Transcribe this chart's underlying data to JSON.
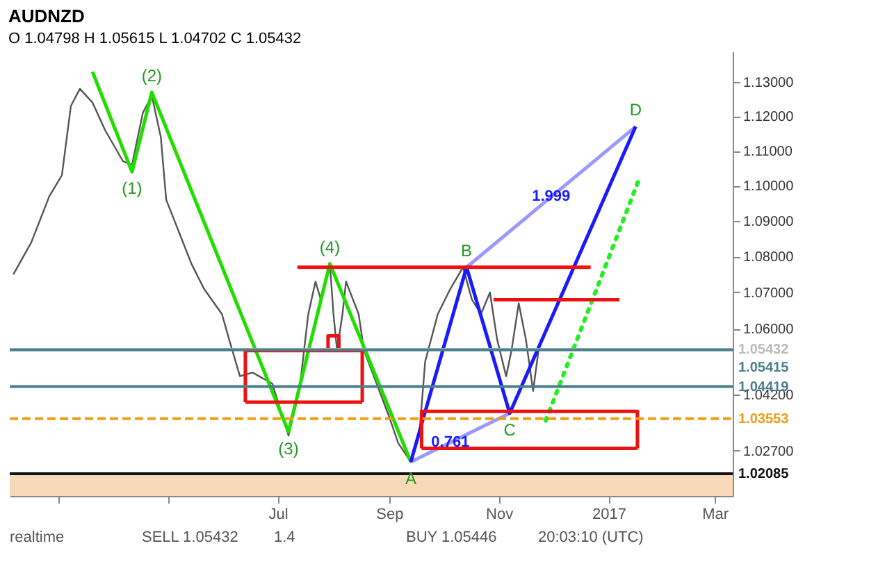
{
  "chart_data": {
    "type": "line",
    "title": "AUDNZD",
    "subtitle": "O 1.04798 H 1.05615 L 1.04702 C 1.05432",
    "log": "y",
    "xlim": [
      "2016-02-03",
      "2017-03-11"
    ],
    "xticks": [
      {
        "value": "2016-03-01",
        "label": null
      },
      {
        "value": "2016-05-01",
        "label": null
      },
      {
        "value": "2016-07-01",
        "label": "Jul"
      },
      {
        "value": "2016-09-01",
        "label": "Sep"
      },
      {
        "value": "2016-11-01",
        "label": "Nov"
      },
      {
        "value": "2017-01-01",
        "label": "2017"
      },
      {
        "value": "2017-03-01",
        "label": "Mar"
      }
    ],
    "ylim": [
      1.015,
      1.139
    ],
    "yticks": [
      {
        "value": 1.027,
        "label": "1.02700"
      },
      {
        "value": 1.042,
        "label": "1.04200"
      },
      {
        "value": 1.06,
        "label": "1.06000"
      },
      {
        "value": 1.07,
        "label": "1.07000"
      },
      {
        "value": 1.08,
        "label": "1.08000"
      },
      {
        "value": 1.09,
        "label": "1.09000"
      },
      {
        "value": 1.1,
        "label": "1.10000"
      },
      {
        "value": 1.11,
        "label": "1.11000"
      },
      {
        "value": 1.12,
        "label": "1.12000"
      },
      {
        "value": 1.13,
        "label": "1.13000"
      }
    ],
    "series": [
      {
        "color": "#555555",
        "x": [
          "2016-02-05",
          "2016-02-15",
          "2016-02-25",
          "2016-03-03",
          "2016-03-08",
          "2016-03-13",
          "2016-03-20",
          "2016-03-27",
          "2016-04-06",
          "2016-04-11",
          "2016-04-17",
          "2016-04-22",
          "2016-04-27",
          "2016-04-30",
          "2016-05-07",
          "2016-05-14",
          "2016-05-21",
          "2016-05-31",
          "2016-06-04",
          "2016-06-10",
          "2016-06-17",
          "2016-06-28",
          "2016-07-07",
          "2016-07-13",
          "2016-07-18",
          "2016-07-22",
          "2016-07-25",
          "2016-07-30",
          "2016-08-01",
          "2016-08-03",
          "2016-08-06",
          "2016-08-08",
          "2016-08-15",
          "2016-08-18",
          "2016-08-25",
          "2016-09-01",
          "2016-09-06",
          "2016-09-13",
          "2016-09-18",
          "2016-09-21",
          "2016-09-28",
          "2016-10-05",
          "2016-10-12",
          "2016-10-17",
          "2016-10-22",
          "2016-10-27",
          "2016-10-31",
          "2016-11-05",
          "2016-11-08",
          "2016-11-12",
          "2016-11-16",
          "2016-11-20",
          "2016-11-23"
        ],
        "values": [
          1.075,
          1.084,
          1.097,
          1.103,
          1.123,
          1.128,
          1.124,
          1.116,
          1.107,
          1.106,
          1.121,
          1.126,
          1.114,
          1.096,
          1.087,
          1.078,
          1.071,
          1.064,
          1.057,
          1.047,
          1.048,
          1.045,
          1.031,
          1.043,
          1.064,
          1.073,
          1.068,
          1.078,
          1.064,
          1.054,
          1.064,
          1.073,
          1.064,
          1.054,
          1.045,
          1.036,
          1.029,
          1.024,
          1.033,
          1.051,
          1.064,
          1.071,
          1.077,
          1.068,
          1.064,
          1.07,
          1.057,
          1.047,
          1.054,
          1.067,
          1.057,
          1.043,
          1.054
        ]
      },
      {
        "color": "#22dd00",
        "x": [
          "2016-03-20",
          "2016-04-11",
          "2016-04-22",
          "2016-07-07",
          "2016-07-30",
          "2016-09-13"
        ],
        "values": [
          1.133,
          1.104,
          1.127,
          1.032,
          1.078,
          1.024
        ]
      },
      {
        "color": "#9999ff",
        "x": [
          "2016-09-13",
          "2016-11-07"
        ],
        "values": [
          1.024,
          1.037
        ]
      },
      {
        "color": "#9999ff",
        "x": [
          "2016-10-14",
          "2017-01-16"
        ],
        "values": [
          1.077,
          1.117
        ]
      },
      {
        "color": "#1a1aff",
        "x": [
          "2016-09-13",
          "2016-10-14",
          "2016-11-07",
          "2017-01-16"
        ],
        "values": [
          1.024,
          1.077,
          1.037,
          1.117
        ]
      },
      {
        "color": "#22ee22",
        "line_style": "dotted",
        "x": [
          "2016-11-27",
          "2017-01-18"
        ],
        "values": [
          1.035,
          1.102
        ]
      },
      {
        "color": "#ee1111",
        "x": [
          "2016-07-12",
          "2016-12-22"
        ],
        "values": [
          1.077,
          1.077
        ]
      },
      {
        "color": "#ee1111",
        "x": [
          "2016-10-29",
          "2017-01-07"
        ],
        "values": [
          1.068,
          1.068
        ]
      },
      {
        "color": "#ee1111",
        "x": [
          "2016-06-13",
          "2016-06-13",
          "2016-08-17",
          "2016-08-17"
        ],
        "values": [
          1.04,
          1.054,
          1.054,
          1.04
        ]
      },
      {
        "color": "#ee1111",
        "x": [
          "2016-06-13",
          "2016-08-17"
        ],
        "values": [
          1.04,
          1.04
        ]
      },
      {
        "color": "#ee1111",
        "x": [
          "2016-07-29",
          "2016-07-29",
          "2016-08-04",
          "2016-08-04"
        ],
        "values": [
          1.054,
          1.058,
          1.058,
          1.054
        ]
      },
      {
        "color": "#ee1111",
        "x": [
          "2016-09-19",
          "2016-09-19",
          "2017-01-17",
          "2017-01-17"
        ],
        "values": [
          1.0276,
          1.0375,
          1.0375,
          1.0276
        ]
      },
      {
        "color": "#ee1111",
        "x": [
          "2016-09-19",
          "2017-01-17"
        ],
        "values": [
          1.0276,
          1.0276
        ]
      }
    ],
    "ref_lines": [
      {
        "axis": "y",
        "value": 1.05432,
        "label": "1.05432",
        "color": "#bbbbbb"
      },
      {
        "axis": "y",
        "value": 1.05415,
        "label": "1.05415",
        "color": "#4a7f8c"
      },
      {
        "axis": "y",
        "value": 1.04419,
        "label": "1.04419",
        "color": "#4a7f8c"
      },
      {
        "axis": "y",
        "value": 1.03553,
        "label": "1.03553",
        "color": "#f39c12",
        "line_style": "dashed"
      },
      {
        "axis": "y",
        "value": 1.02085,
        "label": "1.02085",
        "color": "#111111"
      }
    ],
    "bands": [
      {
        "axis": "y",
        "from": 1.015,
        "to": 1.02085,
        "color": "#f5d0a9"
      }
    ],
    "annotations": [
      {
        "text": "(1)",
        "x": "2016-04-11",
        "y": 1.104
      },
      {
        "text": "(2)",
        "x": "2016-04-22",
        "y": 1.127
      },
      {
        "text": "(3)",
        "x": "2016-07-07",
        "y": 1.032
      },
      {
        "text": "(4)",
        "x": "2016-07-30",
        "y": 1.078
      },
      {
        "text": "A",
        "x": "2016-09-13",
        "y": 1.024
      },
      {
        "text": "B",
        "x": "2016-10-14",
        "y": 1.077
      },
      {
        "text": "C",
        "x": "2016-11-07",
        "y": 1.037
      },
      {
        "text": "D",
        "x": "2017-01-16",
        "y": 1.117
      },
      {
        "text": "0.761",
        "x": "2016-10-05",
        "y": 1.0292
      },
      {
        "text": "1.999",
        "x": "2016-11-30",
        "y": 1.097
      },
      "realtime",
      "SELL 1.05432",
      "1.4",
      "BUY 1.05446",
      "20:03:10 (UTC)"
    ]
  }
}
